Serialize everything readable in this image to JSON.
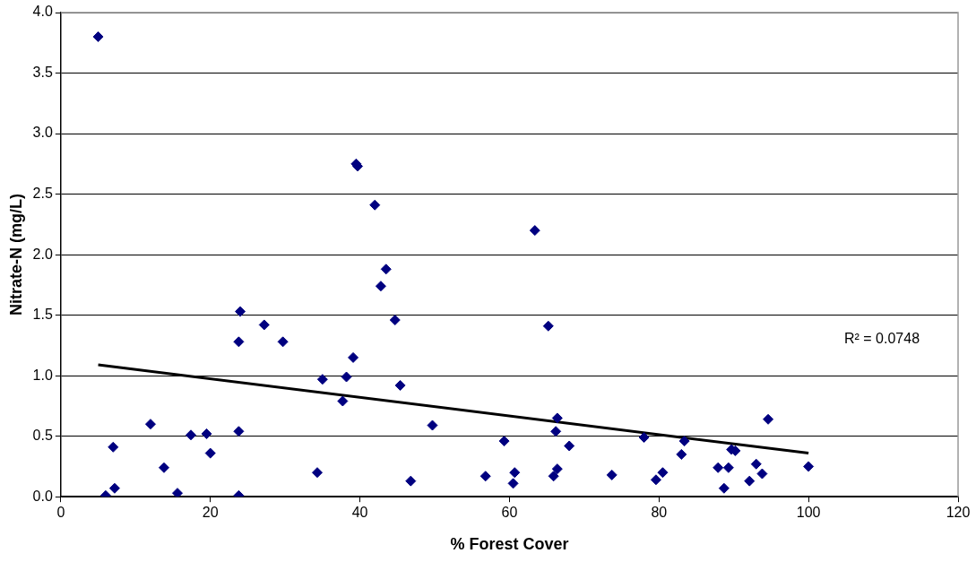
{
  "chart_data": {
    "type": "scatter",
    "xlabel": "% Forest Cover",
    "ylabel": "Nitrate-N (mg/L)",
    "series": [
      {
        "color": "#000080",
        "marker": "diamond",
        "x": [
          5.0,
          6.0,
          7.2,
          7.0,
          12.0,
          13.8,
          15.6,
          17.4,
          19.5,
          20.0,
          23.8,
          23.8,
          23.8,
          24.0,
          27.2,
          29.7,
          34.3,
          35.0,
          37.7,
          38.2,
          39.1,
          39.5,
          39.7,
          42.0,
          42.8,
          43.5,
          44.7,
          45.4,
          46.8,
          49.7,
          56.8,
          59.3,
          60.5,
          60.7,
          63.4,
          65.2,
          65.9,
          66.2,
          66.4,
          66.4,
          68.0,
          73.7,
          78.0,
          79.6,
          80.5,
          83.0,
          83.4,
          87.9,
          88.7,
          89.3,
          89.7,
          90.2,
          92.1,
          93.0,
          93.8,
          94.6,
          100.0
        ],
        "values": [
          3.8,
          0.01,
          0.07,
          0.41,
          0.6,
          0.24,
          0.03,
          0.51,
          0.52,
          0.36,
          0.54,
          0.01,
          1.28,
          1.53,
          1.42,
          1.28,
          0.2,
          0.97,
          0.79,
          0.99,
          1.15,
          2.75,
          2.73,
          2.41,
          1.74,
          1.88,
          1.46,
          0.92,
          0.13,
          0.59,
          0.17,
          0.46,
          0.11,
          0.2,
          2.2,
          1.41,
          0.17,
          0.54,
          0.65,
          0.23,
          0.42,
          0.18,
          0.49,
          0.14,
          0.2,
          0.35,
          0.46,
          0.24,
          0.07,
          0.24,
          0.39,
          0.38,
          0.13,
          0.27,
          0.19,
          0.64,
          0.25
        ]
      },
      {
        "type": "line",
        "color": "#000000",
        "marker": "none",
        "line_style": "solid",
        "x": [
          5,
          100
        ],
        "values": [
          1.09,
          0.36
        ]
      }
    ],
    "xlim": [
      0,
      120
    ],
    "xticks": [
      0,
      20,
      40,
      60,
      80,
      100,
      120
    ],
    "ylim": [
      0,
      4
    ],
    "yticks": [
      {
        "value": 0,
        "label": "0.0"
      },
      {
        "value": 0.5,
        "label": "0.5"
      },
      {
        "value": 1,
        "label": "1.0"
      },
      {
        "value": 1.5,
        "label": "1.5"
      },
      {
        "value": 2,
        "label": "2.0"
      },
      {
        "value": 2.5,
        "label": "2.5"
      },
      {
        "value": 3,
        "label": "3.0"
      },
      {
        "value": 3.5,
        "label": "3.5"
      },
      {
        "value": 4,
        "label": "4.0"
      }
    ],
    "grid": "y",
    "legend": false,
    "annotations": [
      "R² = 0.0748"
    ]
  }
}
